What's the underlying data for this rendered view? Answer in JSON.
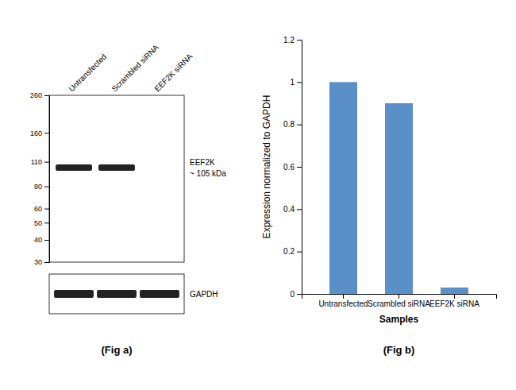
{
  "chart_data": [
    {
      "type": "blot",
      "title": "(Fig a)",
      "categories": [
        "Untransfected",
        "Scrambled siRNA",
        "EEF2K siRNA"
      ],
      "log": "y",
      "ylim": [
        30,
        260
      ],
      "yticks": [
        260,
        160,
        110,
        80,
        60,
        50,
        40,
        30
      ],
      "series": [
        {
          "name": "EEF2K",
          "values": [
            102,
            102,
            null
          ]
        }
      ],
      "annotations": [
        "~ 105 kDa"
      ],
      "loading_control": "GAPDH"
    },
    {
      "type": "bar",
      "title": "(Fig b)",
      "categories": [
        "Untransfected",
        "Scrambled siRNA",
        "EEF2K siRNA"
      ],
      "values": [
        1,
        0.9,
        0.03
      ],
      "color": "#5b8fc7",
      "ylim": [
        0,
        1.2
      ],
      "yticks": [
        0,
        0.2,
        0.4,
        0.6,
        0.8,
        1,
        1.2
      ],
      "ylabel": "Expression normalized to GAPDH",
      "xlabel": "Samples"
    }
  ]
}
